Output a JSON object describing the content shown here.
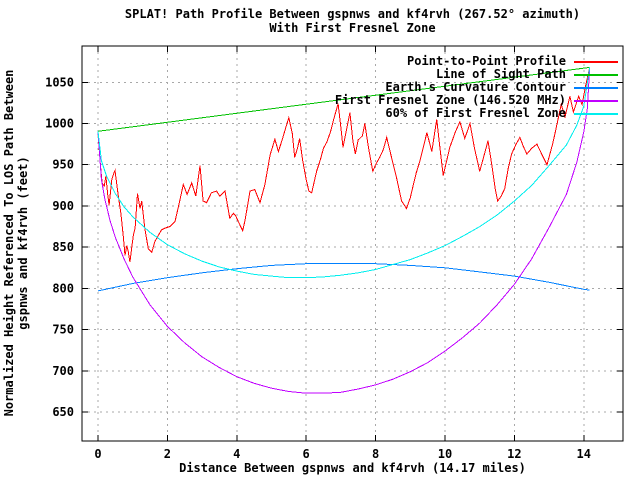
{
  "chart_data": {
    "type": "line",
    "title": "SPLAT! Path Profile Between gspnws and kf4rvh (267.52° azimuth)",
    "title_line2": "With First Fresnel Zone",
    "xlabel": "Distance Between gspnws and kf4rvh (14.17 miles)",
    "ylabel_line1": "Normalized Height Referenced To LOS Path Between",
    "ylabel_line2": "gspnws and kf4rvh (feet)",
    "x_ticks": [
      0,
      2,
      4,
      6,
      8,
      10,
      12,
      14
    ],
    "y_ticks": [
      650,
      700,
      750,
      800,
      850,
      900,
      950,
      1000,
      1050
    ],
    "x_range": [
      -0.46,
      15.13
    ],
    "y_range": [
      615,
      1094
    ],
    "grid": "dashed",
    "legend_position": "top-right-inside",
    "path_distance_miles": 14.17,
    "frequency_mhz": "146.520",
    "colors": {
      "border": "#000000",
      "grid": "#a8a8a8",
      "background": "#ffffff"
    },
    "series": [
      {
        "name": "Point-to-Point Profile",
        "color": "#ff0000",
        "points": [
          [
            0,
            990
          ],
          [
            0.03,
            972
          ],
          [
            0.07,
            950
          ],
          [
            0.12,
            928
          ],
          [
            0.18,
            924
          ],
          [
            0.23,
            936
          ],
          [
            0.28,
            914
          ],
          [
            0.32,
            901
          ],
          [
            0.4,
            932
          ],
          [
            0.46,
            940
          ],
          [
            0.49,
            943
          ],
          [
            0.58,
            914
          ],
          [
            0.66,
            891
          ],
          [
            0.73,
            863
          ],
          [
            0.78,
            840
          ],
          [
            0.83,
            852
          ],
          [
            0.87,
            845
          ],
          [
            0.92,
            832
          ],
          [
            1.02,
            865
          ],
          [
            1.07,
            873
          ],
          [
            1.14,
            915
          ],
          [
            1.21,
            897
          ],
          [
            1.26,
            906
          ],
          [
            1.35,
            873
          ],
          [
            1.45,
            848
          ],
          [
            1.55,
            844
          ],
          [
            1.64,
            857
          ],
          [
            1.75,
            865
          ],
          [
            1.83,
            871
          ],
          [
            1.93,
            873
          ],
          [
            2.07,
            875
          ],
          [
            2.22,
            881
          ],
          [
            2.35,
            905
          ],
          [
            2.46,
            926
          ],
          [
            2.57,
            914
          ],
          [
            2.7,
            928
          ],
          [
            2.82,
            912
          ],
          [
            2.94,
            949
          ],
          [
            3.03,
            906
          ],
          [
            3.13,
            904
          ],
          [
            3.27,
            916
          ],
          [
            3.42,
            918
          ],
          [
            3.51,
            912
          ],
          [
            3.66,
            918
          ],
          [
            3.8,
            885
          ],
          [
            3.9,
            891
          ],
          [
            3.97,
            888
          ],
          [
            4.09,
            877
          ],
          [
            4.17,
            870
          ],
          [
            4.24,
            883
          ],
          [
            4.38,
            918
          ],
          [
            4.52,
            920
          ],
          [
            4.67,
            904
          ],
          [
            4.81,
            926
          ],
          [
            4.96,
            962
          ],
          [
            5.1,
            981
          ],
          [
            5.2,
            966
          ],
          [
            5.32,
            982
          ],
          [
            5.42,
            996
          ],
          [
            5.5,
            1007
          ],
          [
            5.6,
            988
          ],
          [
            5.67,
            959
          ],
          [
            5.75,
            970
          ],
          [
            5.81,
            982
          ],
          [
            5.9,
            955
          ],
          [
            6.0,
            932
          ],
          [
            6.08,
            918
          ],
          [
            6.16,
            916
          ],
          [
            6.3,
            942
          ],
          [
            6.4,
            955
          ],
          [
            6.5,
            970
          ],
          [
            6.6,
            978
          ],
          [
            6.7,
            990
          ],
          [
            6.8,
            1006
          ],
          [
            6.92,
            1024
          ],
          [
            7.0,
            995
          ],
          [
            7.06,
            971
          ],
          [
            7.15,
            990
          ],
          [
            7.26,
            1013
          ],
          [
            7.35,
            978
          ],
          [
            7.42,
            963
          ],
          [
            7.5,
            980
          ],
          [
            7.62,
            985
          ],
          [
            7.69,
            1000
          ],
          [
            7.8,
            970
          ],
          [
            7.92,
            942
          ],
          [
            8.0,
            950
          ],
          [
            8.12,
            959
          ],
          [
            8.22,
            968
          ],
          [
            8.32,
            983
          ],
          [
            8.46,
            959
          ],
          [
            8.6,
            935
          ],
          [
            8.75,
            906
          ],
          [
            8.89,
            897
          ],
          [
            9.0,
            910
          ],
          [
            9.06,
            921
          ],
          [
            9.17,
            940
          ],
          [
            9.28,
            955
          ],
          [
            9.38,
            972
          ],
          [
            9.48,
            989
          ],
          [
            9.62,
            966
          ],
          [
            9.76,
            1005
          ],
          [
            9.85,
            972
          ],
          [
            9.95,
            937
          ],
          [
            10.05,
            955
          ],
          [
            10.14,
            971
          ],
          [
            10.3,
            990
          ],
          [
            10.43,
            1002
          ],
          [
            10.57,
            982
          ],
          [
            10.72,
            1000
          ],
          [
            10.85,
            970
          ],
          [
            11.0,
            942
          ],
          [
            11.12,
            960
          ],
          [
            11.24,
            979
          ],
          [
            11.35,
            950
          ],
          [
            11.45,
            920
          ],
          [
            11.52,
            906
          ],
          [
            11.62,
            912
          ],
          [
            11.72,
            921
          ],
          [
            11.82,
            945
          ],
          [
            11.92,
            963
          ],
          [
            12.05,
            975
          ],
          [
            12.16,
            983
          ],
          [
            12.26,
            972
          ],
          [
            12.36,
            963
          ],
          [
            12.5,
            970
          ],
          [
            12.65,
            975
          ],
          [
            12.8,
            962
          ],
          [
            12.94,
            950
          ],
          [
            13.1,
            975
          ],
          [
            13.17,
            988
          ],
          [
            13.35,
            1023
          ],
          [
            13.46,
            1008
          ],
          [
            13.6,
            1033
          ],
          [
            13.7,
            1014
          ],
          [
            13.85,
            1033
          ],
          [
            13.95,
            1023
          ],
          [
            14.05,
            1045
          ],
          [
            14.17,
            1068
          ]
        ]
      },
      {
        "name": "Line of Sight Path",
        "color": "#00c000",
        "points": [
          [
            0,
            990.5
          ],
          [
            14.17,
            1068
          ]
        ]
      },
      {
        "name": "Earth's Curvature Contour",
        "color": "#0080ff",
        "points": [
          [
            0,
            797
          ],
          [
            1,
            806
          ],
          [
            2,
            813
          ],
          [
            3,
            819
          ],
          [
            4,
            824
          ],
          [
            5,
            828
          ],
          [
            6,
            830
          ],
          [
            7.085,
            830.5
          ],
          [
            8,
            830
          ],
          [
            9,
            828
          ],
          [
            10,
            825
          ],
          [
            11,
            820
          ],
          [
            12,
            815
          ],
          [
            13,
            807.5
          ],
          [
            14,
            799
          ],
          [
            14.17,
            798
          ]
        ]
      },
      {
        "name": "First Fresnel Zone (146.520 MHz)",
        "color": "#c000ff",
        "points": [
          [
            0,
            990.5
          ],
          [
            0.1,
            932
          ],
          [
            0.2,
            908
          ],
          [
            0.35,
            882
          ],
          [
            0.5,
            862
          ],
          [
            0.75,
            836
          ],
          [
            1,
            814
          ],
          [
            1.5,
            780
          ],
          [
            2,
            754
          ],
          [
            2.5,
            734
          ],
          [
            3,
            717
          ],
          [
            3.5,
            704
          ],
          [
            4,
            693
          ],
          [
            4.5,
            685
          ],
          [
            5,
            679
          ],
          [
            5.5,
            675
          ],
          [
            6,
            673
          ],
          [
            6.5,
            673
          ],
          [
            7,
            674
          ],
          [
            7.5,
            678
          ],
          [
            8,
            683
          ],
          [
            8.5,
            690
          ],
          [
            9,
            699
          ],
          [
            9.5,
            710
          ],
          [
            10,
            724
          ],
          [
            10.5,
            740
          ],
          [
            11,
            758
          ],
          [
            11.5,
            780
          ],
          [
            12,
            805
          ],
          [
            12.5,
            836
          ],
          [
            13,
            874
          ],
          [
            13.5,
            914
          ],
          [
            13.8,
            953
          ],
          [
            14,
            990
          ],
          [
            14.1,
            1018
          ],
          [
            14.17,
            1068
          ]
        ]
      },
      {
        "name": "60% of First Fresnel Zone",
        "color": "#00eeee",
        "points": [
          [
            0,
            990.5
          ],
          [
            0.1,
            955
          ],
          [
            0.25,
            936
          ],
          [
            0.5,
            915
          ],
          [
            0.75,
            899
          ],
          [
            1,
            887
          ],
          [
            1.5,
            868
          ],
          [
            2,
            853
          ],
          [
            2.5,
            842
          ],
          [
            3,
            833
          ],
          [
            3.5,
            826
          ],
          [
            4,
            821
          ],
          [
            4.5,
            817
          ],
          [
            5,
            815
          ],
          [
            5.5,
            813
          ],
          [
            6,
            813
          ],
          [
            6.5,
            814
          ],
          [
            7,
            816
          ],
          [
            7.5,
            819
          ],
          [
            8,
            823
          ],
          [
            8.5,
            829
          ],
          [
            9,
            835
          ],
          [
            9.5,
            843
          ],
          [
            10,
            852
          ],
          [
            10.5,
            863
          ],
          [
            11,
            875
          ],
          [
            11.5,
            889
          ],
          [
            12,
            906
          ],
          [
            12.5,
            925
          ],
          [
            13,
            949
          ],
          [
            13.5,
            974
          ],
          [
            13.8,
            998
          ],
          [
            14,
            1021
          ],
          [
            14.17,
            1068
          ]
        ]
      }
    ]
  }
}
